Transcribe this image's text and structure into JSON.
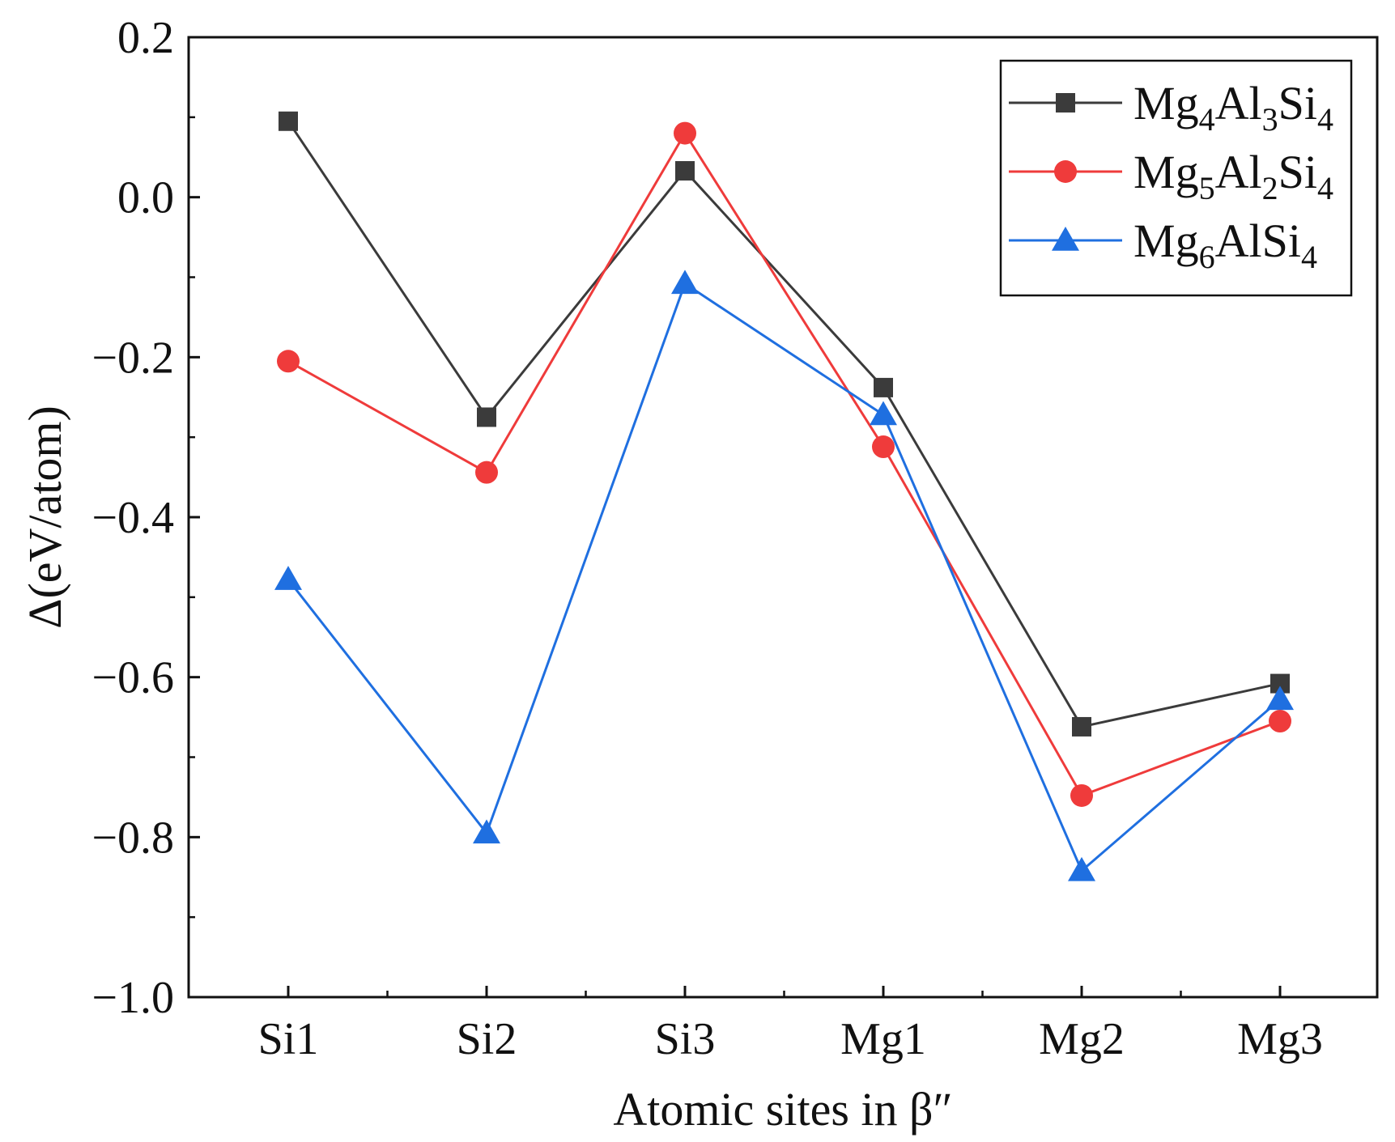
{
  "chart_data": {
    "type": "line",
    "categories": [
      "Si1",
      "Si2",
      "Si3",
      "Mg1",
      "Mg2",
      "Mg3"
    ],
    "series": [
      {
        "name": "Mg4Al3Si4",
        "legend_parts": [
          {
            "t": "Mg",
            "sub": false
          },
          {
            "t": "4",
            "sub": true
          },
          {
            "t": "Al",
            "sub": false
          },
          {
            "t": "3",
            "sub": true
          },
          {
            "t": "Si",
            "sub": false
          },
          {
            "t": "4",
            "sub": true
          }
        ],
        "values": [
          0.095,
          -0.275,
          0.033,
          -0.238,
          -0.662,
          -0.608
        ],
        "color": "#3b3b3b",
        "marker": "square"
      },
      {
        "name": "Mg5Al2Si4",
        "legend_parts": [
          {
            "t": "Mg",
            "sub": false
          },
          {
            "t": "5",
            "sub": true
          },
          {
            "t": "Al",
            "sub": false
          },
          {
            "t": "2",
            "sub": true
          },
          {
            "t": "Si",
            "sub": false
          },
          {
            "t": "4",
            "sub": true
          }
        ],
        "values": [
          -0.205,
          -0.344,
          0.08,
          -0.312,
          -0.748,
          -0.655
        ],
        "color": "#ef3b3b",
        "marker": "circle"
      },
      {
        "name": "Mg6AlSi4",
        "legend_parts": [
          {
            "t": "Mg",
            "sub": false
          },
          {
            "t": "6",
            "sub": true
          },
          {
            "t": "AlSi",
            "sub": false
          },
          {
            "t": "4",
            "sub": true
          }
        ],
        "values": [
          -0.478,
          -0.795,
          -0.108,
          -0.272,
          -0.842,
          -0.628
        ],
        "color": "#1f6fe0",
        "marker": "triangle"
      }
    ],
    "title": "",
    "xlabel": "Atomic sites in β″",
    "ylabel": "Δ(eV/atom)",
    "ylim": [
      -1.0,
      0.2
    ],
    "yticks": [
      0.2,
      0.0,
      -0.2,
      -0.4,
      -0.6,
      -0.8,
      -1.0
    ],
    "ytick_labels": [
      "0.2",
      "0.0",
      "−0.2",
      "−0.4",
      "−0.6",
      "−0.8",
      "−1.0"
    ],
    "grid": false,
    "legend_position": "top-right"
  }
}
